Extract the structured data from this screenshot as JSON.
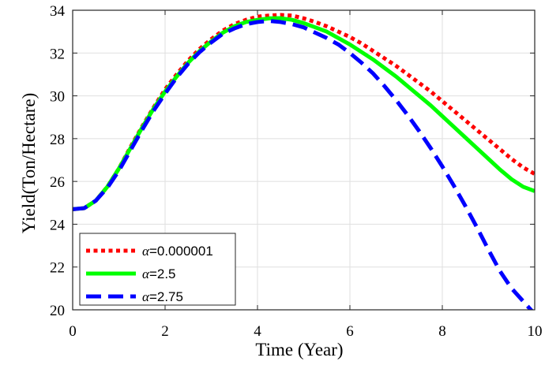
{
  "chart_data": {
    "type": "line",
    "title": "",
    "xlabel": "Time (Year)",
    "ylabel": "Yield(Ton/Hectare)",
    "xlim": [
      0,
      10
    ],
    "ylim": [
      20,
      34
    ],
    "xticks": [
      0,
      2,
      4,
      6,
      8,
      10
    ],
    "yticks": [
      20,
      22,
      24,
      26,
      28,
      30,
      32,
      34
    ],
    "grid": true,
    "legend_position": "bottom-left",
    "x": [
      0,
      0.25,
      0.5,
      0.75,
      1,
      1.25,
      1.5,
      1.75,
      2,
      2.25,
      2.5,
      2.75,
      3,
      3.25,
      3.5,
      3.75,
      4,
      4.25,
      4.5,
      4.75,
      5,
      5.25,
      5.5,
      5.75,
      6,
      6.25,
      6.5,
      6.75,
      7,
      7.25,
      7.5,
      7.75,
      8,
      8.25,
      8.5,
      8.75,
      9,
      9.25,
      9.5,
      9.75,
      10
    ],
    "series": [
      {
        "name": "α=0.000001",
        "legend_symbol": "α",
        "legend_value": "=0.000001",
        "color": "#ff0000",
        "style": "dotted",
        "values": [
          24.7,
          24.75,
          25.1,
          25.75,
          26.6,
          27.6,
          28.55,
          29.45,
          30.3,
          31.0,
          31.65,
          32.2,
          32.65,
          33.05,
          33.35,
          33.55,
          33.7,
          33.75,
          33.78,
          33.75,
          33.62,
          33.45,
          33.25,
          33.0,
          32.75,
          32.45,
          32.1,
          31.75,
          31.4,
          31.0,
          30.6,
          30.2,
          29.75,
          29.3,
          28.85,
          28.4,
          27.95,
          27.5,
          27.05,
          26.65,
          26.35
        ]
      },
      {
        "name": "α=2.5",
        "legend_symbol": "α",
        "legend_value": "=2.5",
        "color": "#00ff00",
        "style": "solid",
        "values": [
          24.7,
          24.75,
          25.1,
          25.75,
          26.6,
          27.55,
          28.5,
          29.4,
          30.2,
          30.9,
          31.55,
          32.1,
          32.55,
          32.95,
          33.25,
          33.45,
          33.55,
          33.62,
          33.63,
          33.55,
          33.4,
          33.2,
          33.0,
          32.7,
          32.4,
          32.05,
          31.7,
          31.3,
          30.9,
          30.45,
          30.0,
          29.55,
          29.05,
          28.55,
          28.05,
          27.55,
          27.05,
          26.55,
          26.1,
          25.75,
          25.55
        ]
      },
      {
        "name": "α=2.75",
        "legend_symbol": "α",
        "legend_value": "=2.75",
        "color": "#0000ff",
        "style": "dashed",
        "values": [
          24.7,
          24.75,
          25.1,
          25.7,
          26.5,
          27.45,
          28.4,
          29.3,
          30.1,
          30.85,
          31.5,
          32.05,
          32.5,
          32.9,
          33.15,
          33.35,
          33.45,
          33.5,
          33.45,
          33.35,
          33.2,
          32.95,
          32.7,
          32.4,
          32.0,
          31.55,
          31.05,
          30.45,
          29.8,
          29.1,
          28.35,
          27.55,
          26.7,
          25.8,
          24.85,
          23.85,
          22.8,
          21.8,
          21.0,
          20.4,
          19.8
        ]
      }
    ]
  }
}
